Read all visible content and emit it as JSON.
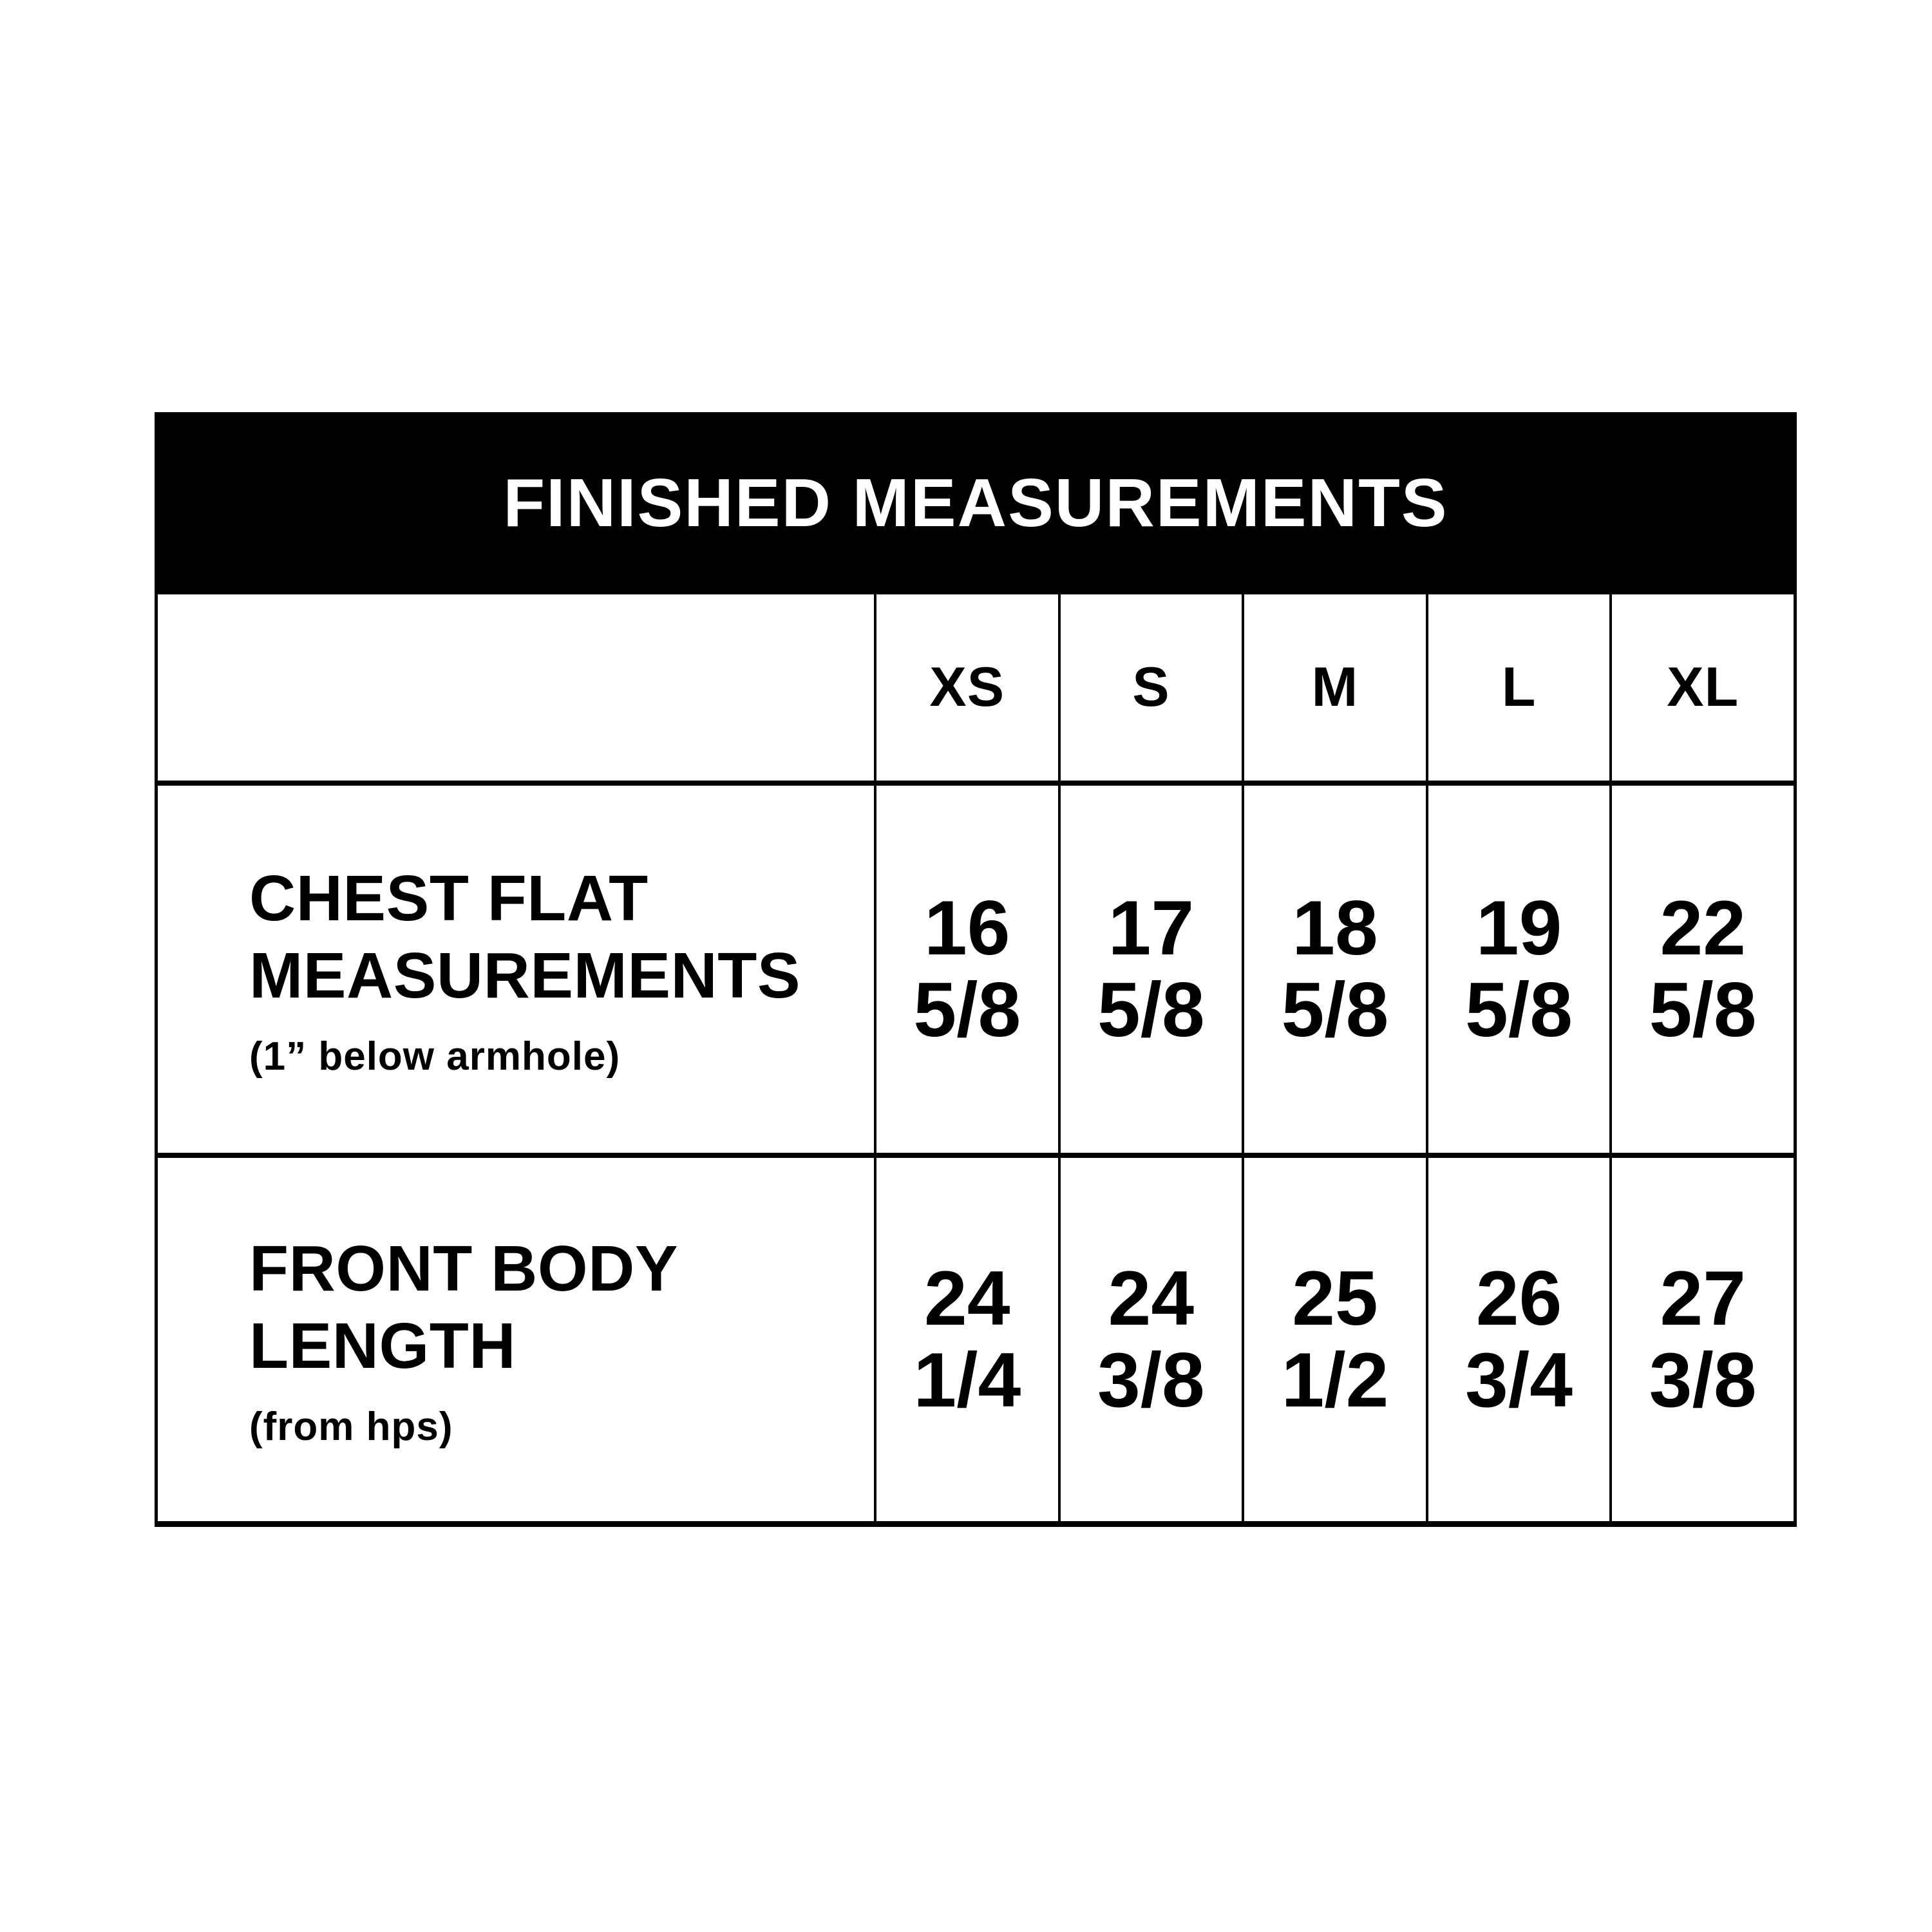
{
  "chart_data": {
    "type": "table",
    "title": "FINISHED MEASUREMENTS",
    "size_columns": [
      "XS",
      "S",
      "M",
      "L",
      "XL"
    ],
    "rows": [
      {
        "label": "CHEST FLAT MEASUREMENTS",
        "note": "(1” below armhole)",
        "values": [
          "16 5/8",
          "17 5/8",
          "18 5/8",
          "19 5/8",
          "22 5/8"
        ]
      },
      {
        "label": "FRONT BODY LENGTH",
        "note": "(from hps)",
        "values": [
          "24 1/4",
          "24 3/8",
          "25 1/2",
          "26 3/4",
          "27 3/8"
        ]
      }
    ],
    "layout_hints": {
      "legend": "none",
      "grid_lines": "on",
      "header_style": "black bar, white centered text"
    },
    "colors": {
      "title_bar_bg": "#000000",
      "title_text": "#ffffff",
      "grid_line": "#000000",
      "cell_text": "#000000",
      "page_bg": "#ffffff"
    }
  }
}
